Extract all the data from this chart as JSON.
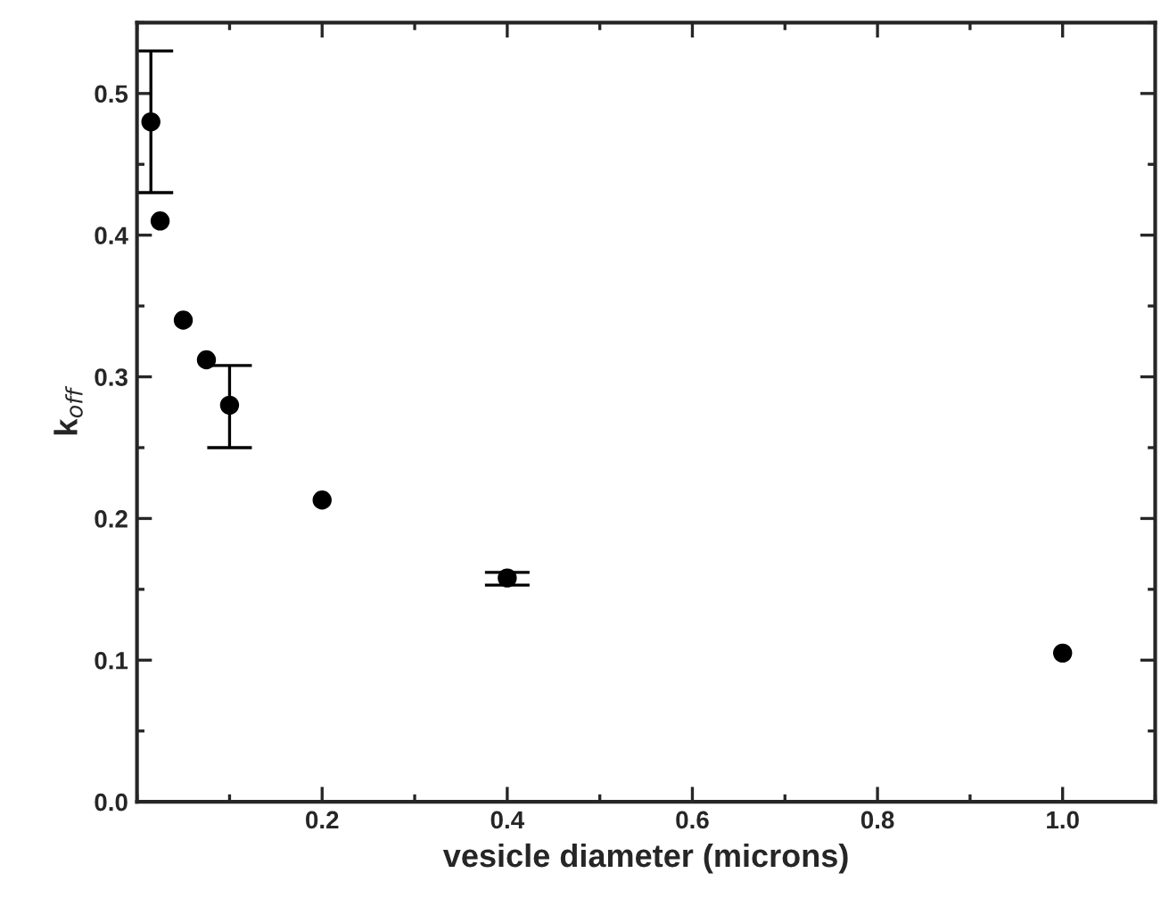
{
  "chart_data": {
    "type": "scatter",
    "xlabel": "vesicle diameter (microns)",
    "ylabel": "k$_{off}$",
    "x": [
      0.015,
      0.025,
      0.05,
      0.075,
      0.1,
      0.2,
      0.4,
      1.0
    ],
    "series": [
      {
        "color": "#000000",
        "values": [
          0.48,
          0.41,
          0.34,
          0.312,
          0.28,
          0.213,
          0.158,
          0.105
        ],
        "errors": [
          [
            0.43,
            0.53
          ],
          null,
          null,
          null,
          [
            0.25,
            0.308
          ],
          null,
          [
            0.153,
            0.162
          ],
          null
        ]
      }
    ],
    "xlim": [
      0,
      1.1
    ],
    "xticks": [
      0.2,
      0.4,
      0.6,
      0.8,
      {
        "value": 1.0,
        "label": "1.0"
      }
    ],
    "ylim": [
      0,
      0.55
    ],
    "yticks": [
      {
        "value": 0.0,
        "label": "0.0"
      },
      0.1,
      0.2,
      0.3,
      0.4,
      0.5
    ],
    "marker": "circle",
    "grid": false,
    "legend": false
  }
}
